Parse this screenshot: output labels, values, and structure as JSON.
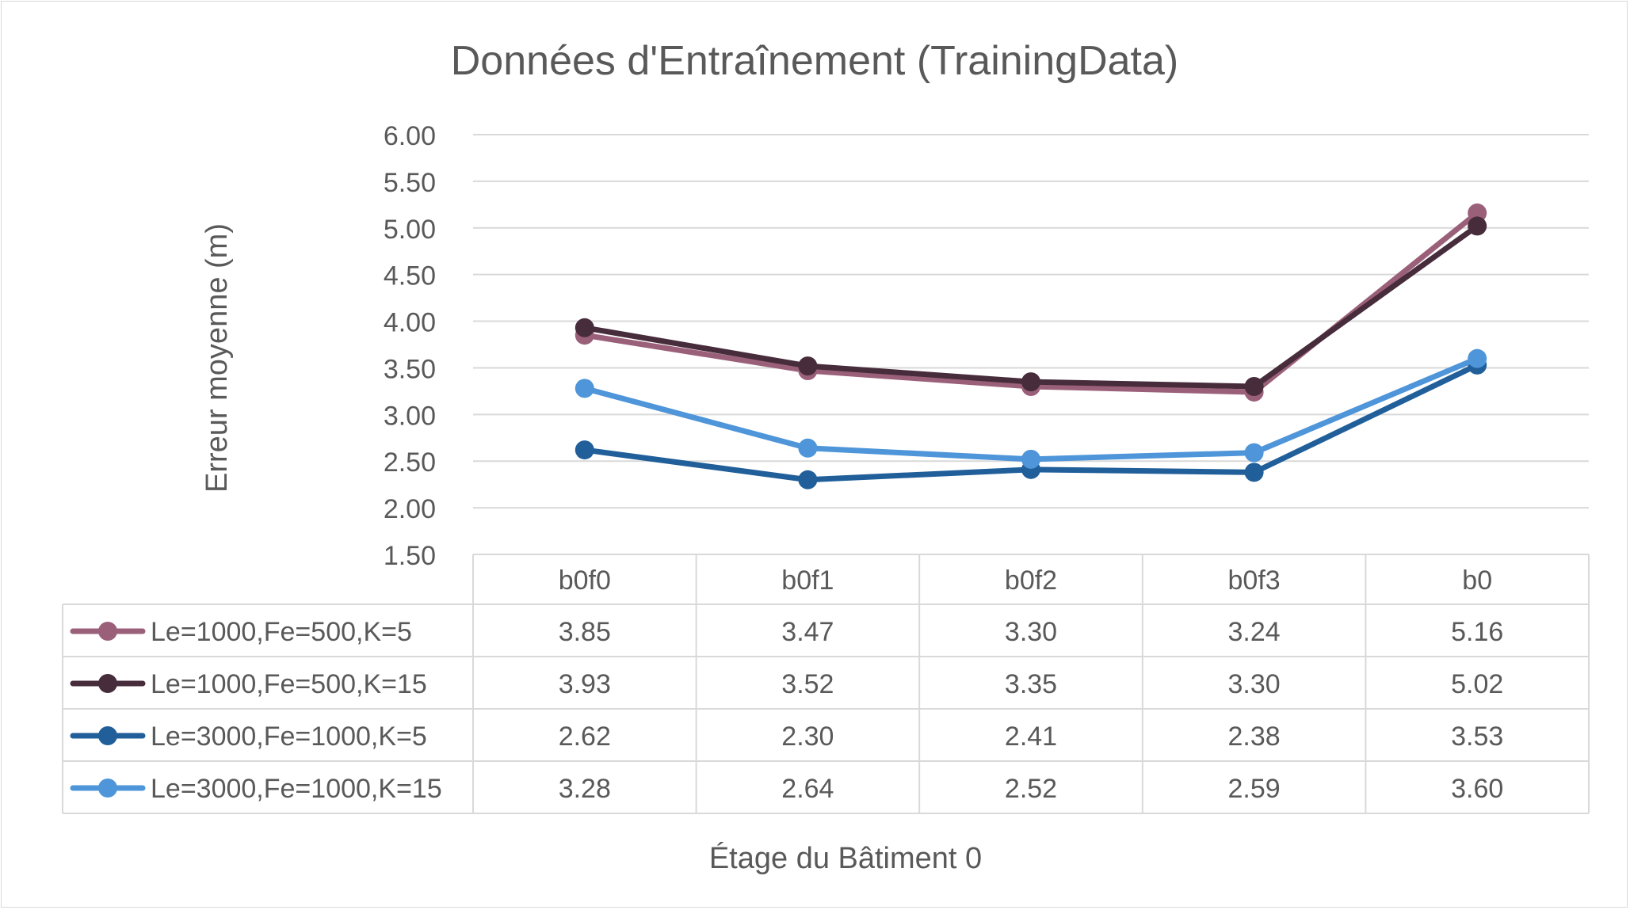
{
  "chart_data": {
    "type": "line",
    "title": "Données d'Entraînement (TrainingData)",
    "xlabel": "Étage du Bâtiment 0",
    "ylabel": "Erreur moyenne (m)",
    "categories": [
      "b0f0",
      "b0f1",
      "b0f2",
      "b0f3",
      "b0"
    ],
    "ylim": [
      1.5,
      6.0
    ],
    "yticks": [
      "1.50",
      "2.00",
      "2.50",
      "3.00",
      "3.50",
      "4.00",
      "4.50",
      "5.00",
      "5.50",
      "6.00"
    ],
    "grid": true,
    "legend": "data-table",
    "series": [
      {
        "name": "Le=1000,Fe=500,K=5",
        "color": "#9b6079",
        "values": [
          3.85,
          3.47,
          3.3,
          3.24,
          5.16
        ],
        "labels": [
          "3.85",
          "3.47",
          "3.30",
          "3.24",
          "5.16"
        ]
      },
      {
        "name": "Le=1000,Fe=500,K=15",
        "color": "#472c3b",
        "values": [
          3.93,
          3.52,
          3.35,
          3.3,
          5.02
        ],
        "labels": [
          "3.93",
          "3.52",
          "3.35",
          "3.30",
          "5.02"
        ]
      },
      {
        "name": "Le=3000,Fe=1000,K=5",
        "color": "#215f9a",
        "values": [
          2.62,
          2.3,
          2.41,
          2.38,
          3.53
        ],
        "labels": [
          "2.62",
          "2.30",
          "2.41",
          "2.38",
          "3.53"
        ]
      },
      {
        "name": "Le=3000,Fe=1000,K=15",
        "color": "#4e95d9",
        "values": [
          3.28,
          2.64,
          2.52,
          2.59,
          3.6
        ],
        "labels": [
          "3.28",
          "2.64",
          "2.52",
          "2.59",
          "3.60"
        ]
      }
    ],
    "gridline_color": "#d9d9d9"
  }
}
